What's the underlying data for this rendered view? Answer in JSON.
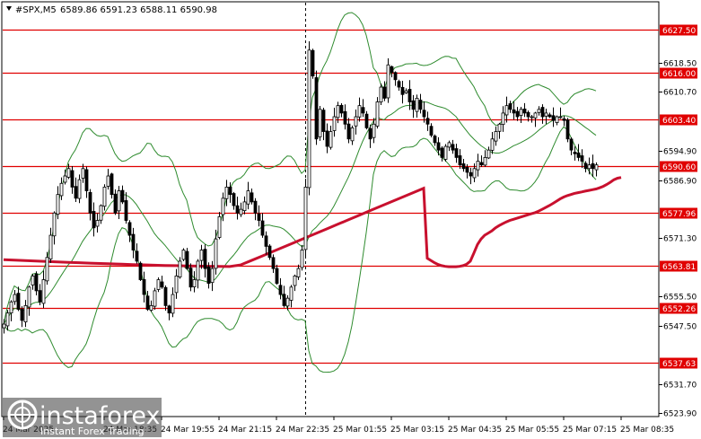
{
  "header": {
    "symbol": "#SPX,M5",
    "ohlc": "6589.86 6591.23 6588.11 6590.98"
  },
  "logo": {
    "name": "instaforex",
    "tagline": "Instant Forex Trading"
  },
  "colors": {
    "levels": "#e00000",
    "ma": "#c8102e",
    "bands": "#2e8b2e",
    "candles": "#000000",
    "label_bg": "#e00000",
    "label_text": "#ffffff"
  },
  "chart_data": {
    "type": "candlestick",
    "symbol": "#SPX",
    "timeframe": "M5",
    "ylim": [
      6523.9,
      6644.0
    ],
    "y_ticks": [
      {
        "value": 6618.5,
        "label": "6618.50"
      },
      {
        "value": 6610.7,
        "label": "6610.70"
      },
      {
        "value": 6594.9,
        "label": "6594.90"
      },
      {
        "value": 6586.9,
        "label": "6586.90"
      },
      {
        "value": 6571.3,
        "label": "6571.30"
      },
      {
        "value": 6555.5,
        "label": "6555.50"
      },
      {
        "value": 6547.5,
        "label": "6547.50"
      },
      {
        "value": 6531.7,
        "label": "6531.70"
      },
      {
        "value": 6523.9,
        "label": "6523.90"
      }
    ],
    "x_ticks": [
      {
        "idx": 0,
        "label": "24 Mar 2025"
      },
      {
        "idx": 28,
        "label": "24 Mar 18:35"
      },
      {
        "idx": 44,
        "label": "24 Mar 19:55"
      },
      {
        "idx": 60,
        "label": "24 Mar 21:15"
      },
      {
        "idx": 76,
        "label": "24 Mar 22:35"
      },
      {
        "idx": 92,
        "label": "25 Mar 01:55"
      },
      {
        "idx": 108,
        "label": "25 Mar 03:15"
      },
      {
        "idx": 124,
        "label": "25 Mar 04:35"
      },
      {
        "idx": 140,
        "label": "25 Mar 05:55"
      },
      {
        "idx": 156,
        "label": "25 Mar 07:15"
      },
      {
        "idx": 172,
        "label": "25 Mar 08:35"
      }
    ],
    "levels": [
      {
        "value": 6627.5,
        "label": "6627.50"
      },
      {
        "value": 6616.0,
        "label": "6616.00"
      },
      {
        "value": 6603.4,
        "label": "6603.40"
      },
      {
        "value": 6590.6,
        "label": "6590.60"
      },
      {
        "value": 6577.96,
        "label": "6577.96"
      },
      {
        "value": 6563.81,
        "label": "6563.81"
      },
      {
        "value": 6552.26,
        "label": "6552.26"
      },
      {
        "value": 6537.63,
        "label": "6537.63"
      }
    ],
    "session_separator_idx": 84,
    "close_series": [
      6548,
      6551,
      6554,
      6556,
      6552,
      6549,
      6553,
      6558,
      6561,
      6557,
      6554,
      6560,
      6566,
      6572,
      6578,
      6583,
      6586,
      6588,
      6590,
      6585,
      6582,
      6587,
      6590,
      6584,
      6578,
      6574,
      6576,
      6580,
      6585,
      6588,
      6583,
      6578,
      6584,
      6581,
      6576,
      6572,
      6568,
      6565,
      6560,
      6556,
      6552,
      6553,
      6557,
      6560,
      6558,
      6553,
      6551,
      6556,
      6561,
      6565,
      6568,
      6563,
      6558,
      6560,
      6565,
      6568,
      6563,
      6559,
      6563,
      6571,
      6577,
      6582,
      6585,
      6583,
      6580,
      6578,
      6579,
      6581,
      6584,
      6581,
      6578,
      6576,
      6572,
      6569,
      6566,
      6563,
      6559,
      6556,
      6553,
      6555,
      6558,
      6561,
      6563,
      6568,
      6585,
      6622,
      6615,
      6598,
      6606,
      6600,
      6596,
      6600,
      6604,
      6607,
      6605,
      6602,
      6598,
      6601,
      6604,
      6607,
      6605,
      6601,
      6598,
      6602,
      6608,
      6612,
      6609,
      6618,
      6616,
      6614,
      6612,
      6610,
      6611,
      6608,
      6606,
      6609,
      6606,
      6604,
      6602,
      6599,
      6597,
      6595,
      6593,
      6596,
      6597,
      6595,
      6593,
      6591,
      6590,
      6589,
      6588,
      6590,
      6592,
      6591,
      6593,
      6595,
      6598,
      6600,
      6602,
      6605,
      6607,
      6606,
      6605,
      6604,
      6606,
      6605,
      6604,
      6604,
      6605,
      6606,
      6604,
      6605,
      6604,
      6603,
      6604,
      6604,
      6603,
      6598,
      6595,
      6594,
      6593,
      6592,
      6590,
      6591,
      6590,
      6591
    ],
    "ma_series": [
      6565.8,
      6565.2,
      6564.6,
      6564.1,
      6563.8,
      6563.6,
      6563.5,
      6563.5,
      6563.5,
      6563.6,
      6563.8,
      6564.2,
      6565.0,
      6567.2,
      6569.5,
      6571.0,
      6572.0,
      6572.6,
      6573.2,
      6574.0,
      6574.6,
      6575.1,
      6575.6,
      6576.0,
      6576.3,
      6576.6,
      6576.9,
      6577.2,
      6577.5,
      6577.8,
      6578.1,
      6578.5,
      6579.0,
      6579.5,
      6580.0,
      6580.6,
      6581.2,
      6581.8,
      6582.3,
      6582.7,
      6583.0,
      6583.3,
      6583.5,
      6583.7,
      6583.9,
      6584.1,
      6584.3,
      6584.5,
      6584.8,
      6585.2,
      6585.7,
      6586.3,
      6587.0,
      6587.4,
      6587.6
    ],
    "ma_start_idx": 118
  }
}
